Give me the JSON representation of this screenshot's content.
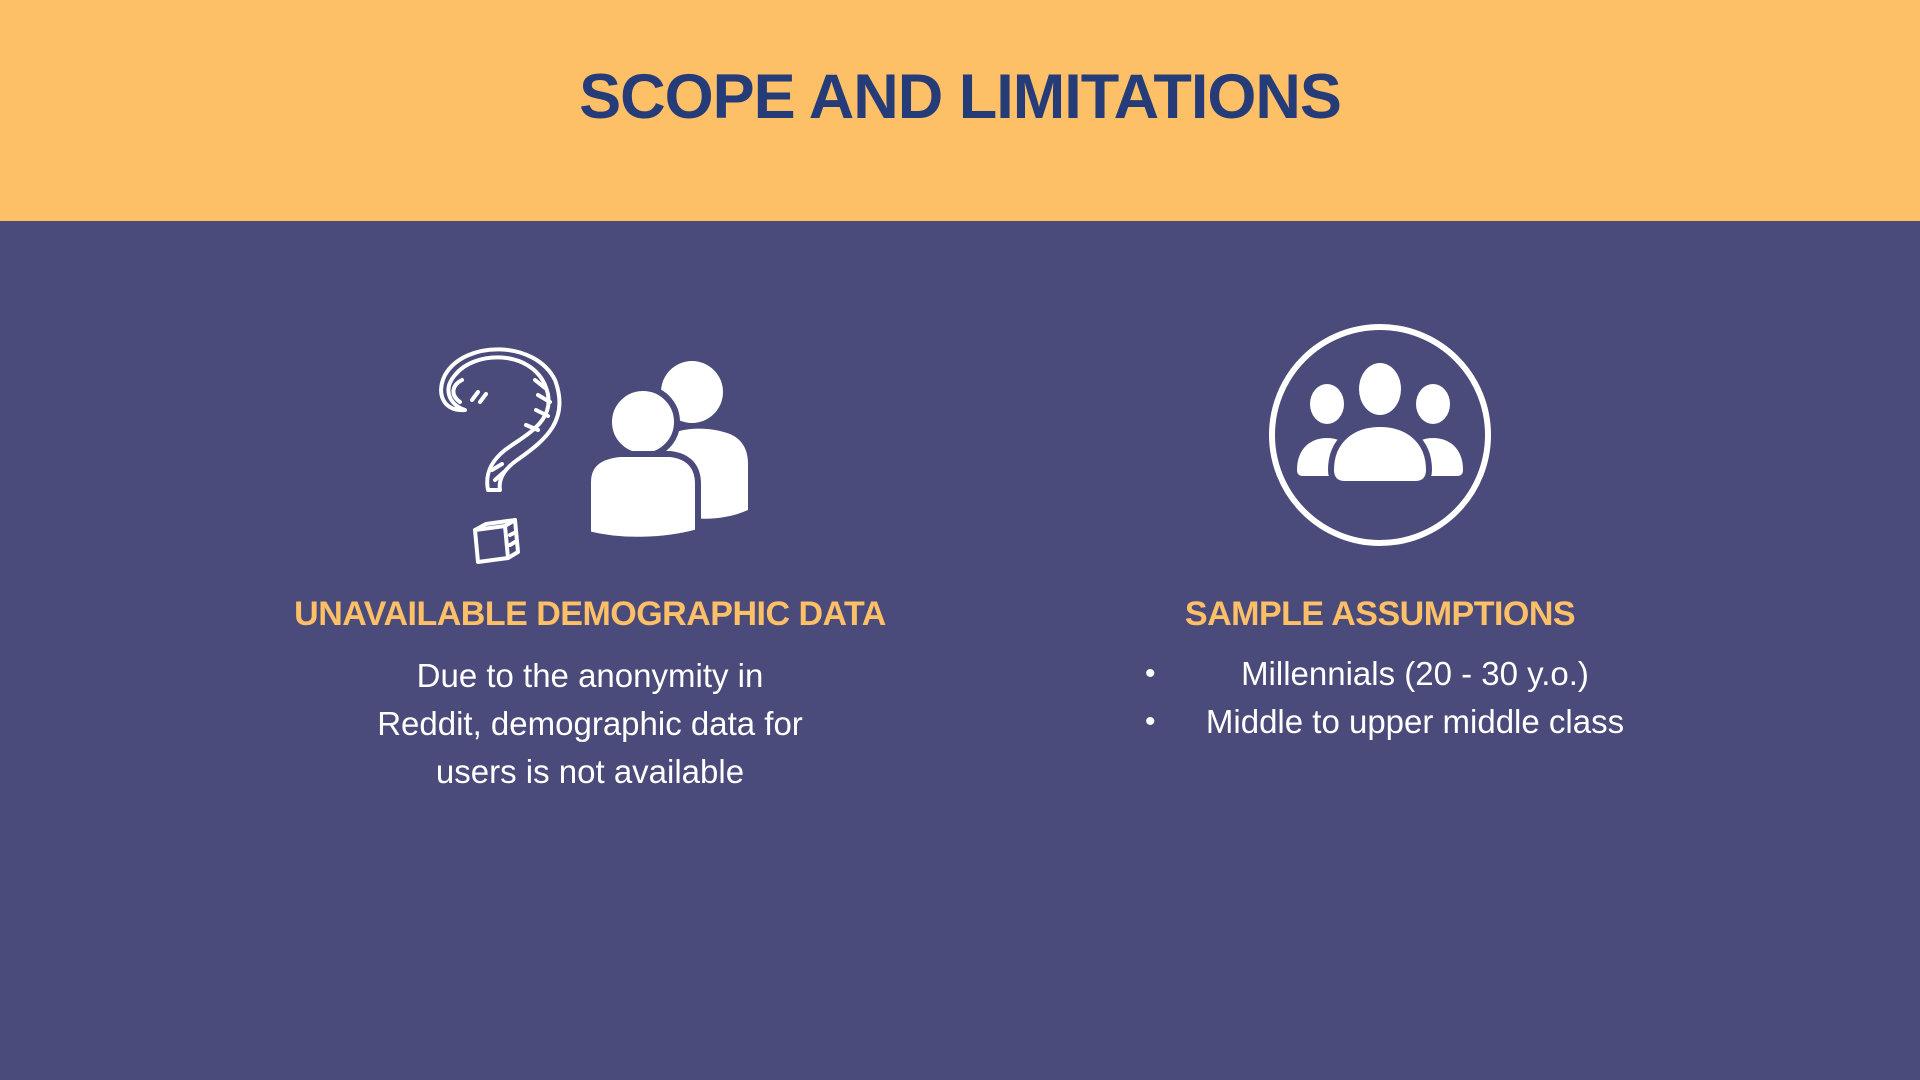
{
  "header": {
    "title": "SCOPE AND LIMITATIONS"
  },
  "left": {
    "icons": [
      "question-mark-icon",
      "users-icon"
    ],
    "heading": "UNAVAILABLE DEMOGRAPHIC DATA",
    "text": "Due to the anonymity in Reddit, demographic data for users is not available"
  },
  "right": {
    "icons": [
      "group-circle-icon"
    ],
    "heading": "SAMPLE ASSUMPTIONS",
    "bullets": [
      "Millennials (20 - 30 y.o.)",
      "Middle to upper middle class"
    ]
  },
  "colors": {
    "header_bg": "#fdc067",
    "title": "#253c78",
    "body_bg": "#4a4a7b",
    "heading": "#fdc067",
    "text": "#ffffff"
  }
}
